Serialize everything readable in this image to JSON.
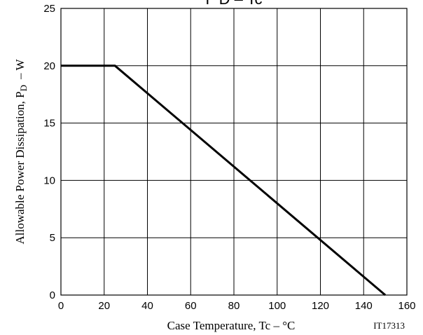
{
  "chart_data": {
    "type": "line",
    "title": "P D – Tc",
    "xlabel": "Case Temperature, Tc  –  °C",
    "ylabel": "Allowable Power Dissipation, P",
    "ylabel_sub": "D",
    "ylabel_unit": "–  W",
    "xlim": [
      0,
      160
    ],
    "ylim": [
      0,
      25
    ],
    "x_ticks": [
      0,
      20,
      40,
      60,
      80,
      100,
      120,
      140,
      160
    ],
    "y_ticks": [
      0,
      5,
      10,
      15,
      20,
      25
    ],
    "grid": true,
    "series": [
      {
        "x": [
          0,
          25,
          150
        ],
        "y": [
          20,
          20,
          0
        ]
      }
    ],
    "figure_code": "IT17313"
  }
}
